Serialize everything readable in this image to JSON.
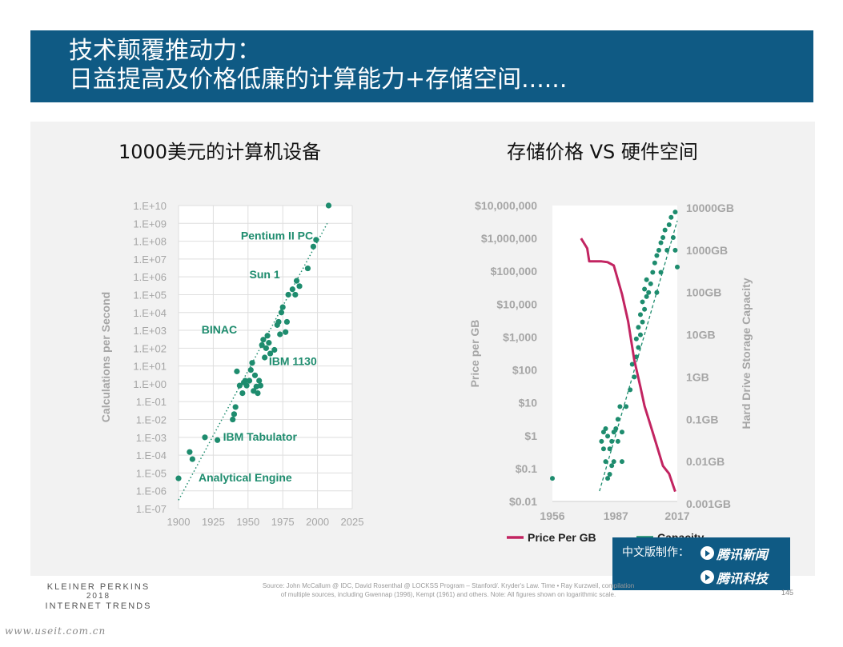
{
  "banner": {
    "title_line1": "技术颠覆推动力：",
    "title_line2": "日益提高及价格低廉的计算能力+存储空间......"
  },
  "colors": {
    "banner_bg": "#0f5a84",
    "green": "#1e8c6e",
    "crimson": "#c22461",
    "axis_grey": "#a6a6a6"
  },
  "chart_data": [
    {
      "type": "scatter",
      "title": "1000美元的计算机设备",
      "ylabel": "Calculations per Second",
      "xlabel": "",
      "y_scale": "log",
      "xlim": [
        1900,
        2025
      ],
      "ylim": [
        1e-07,
        10000000000.0
      ],
      "x_ticks": [
        "1900",
        "1925",
        "1950",
        "1975",
        "2000",
        "2025"
      ],
      "y_ticks": [
        "1.E-07",
        "1.E-06",
        "1.E-05",
        "1.E-04",
        "1.E-03",
        "1.E-02",
        "1.E-01",
        "1.E+00",
        "1.E+01",
        "1.E+02",
        "1.E+03",
        "1.E+04",
        "1.E+05",
        "1.E+06",
        "1.E+07",
        "1.E+08",
        "1.E+09",
        "1.E+10"
      ],
      "grid": true,
      "annotations": [
        {
          "text": "Pentium II PC",
          "x": 1998,
          "y": 100000000.0
        },
        {
          "text": "Sun 1",
          "x": 1981,
          "y": 1000000.0
        },
        {
          "text": "BINAC",
          "x": 1949,
          "y": 1000.0
        },
        {
          "text": "IBM 1130",
          "x": 1965,
          "y": 10
        },
        {
          "text": "IBM Tabulator",
          "x": 1928,
          "y": 0.001
        },
        {
          "text": "Analytical Engine",
          "x": 1900,
          "y": 5e-06
        }
      ],
      "trendline": {
        "style": "dotted",
        "from": [
          1900,
          3e-07
        ],
        "to": [
          2007,
          1000000000.0
        ]
      },
      "points": [
        {
          "x": 1900,
          "y": 5e-06
        },
        {
          "x": 1908,
          "y": 0.00015
        },
        {
          "x": 1910,
          "y": 6e-05
        },
        {
          "x": 1919,
          "y": 0.001
        },
        {
          "x": 1928,
          "y": 0.0007
        },
        {
          "x": 1939,
          "y": 0.01
        },
        {
          "x": 1940,
          "y": 0.02
        },
        {
          "x": 1941,
          "y": 0.05
        },
        {
          "x": 1942,
          "y": 5
        },
        {
          "x": 1944,
          "y": 0.8
        },
        {
          "x": 1946,
          "y": 0.3
        },
        {
          "x": 1947,
          "y": 1.2
        },
        {
          "x": 1948,
          "y": 1.5
        },
        {
          "x": 1949,
          "y": 0.8
        },
        {
          "x": 1951,
          "y": 1.5
        },
        {
          "x": 1952,
          "y": 6
        },
        {
          "x": 1953,
          "y": 15
        },
        {
          "x": 1954,
          "y": 0.4
        },
        {
          "x": 1955,
          "y": 3
        },
        {
          "x": 1956,
          "y": 0.7
        },
        {
          "x": 1957,
          "y": 0.3
        },
        {
          "x": 1958,
          "y": 1.5
        },
        {
          "x": 1959,
          "y": 0.8
        },
        {
          "x": 1960,
          "y": 150
        },
        {
          "x": 1961,
          "y": 300
        },
        {
          "x": 1962,
          "y": 30
        },
        {
          "x": 1963,
          "y": 100
        },
        {
          "x": 1964,
          "y": 500
        },
        {
          "x": 1965,
          "y": 200
        },
        {
          "x": 1966,
          "y": 50
        },
        {
          "x": 1969,
          "y": 80
        },
        {
          "x": 1971,
          "y": 2000
        },
        {
          "x": 1972,
          "y": 3000
        },
        {
          "x": 1973,
          "y": 600
        },
        {
          "x": 1974,
          "y": 10000
        },
        {
          "x": 1975,
          "y": 20000
        },
        {
          "x": 1977,
          "y": 800
        },
        {
          "x": 1978,
          "y": 3000
        },
        {
          "x": 1979,
          "y": 100000
        },
        {
          "x": 1982,
          "y": 200000
        },
        {
          "x": 1984,
          "y": 100000
        },
        {
          "x": 1985,
          "y": 600000
        },
        {
          "x": 1987,
          "y": 300000
        },
        {
          "x": 1993,
          "y": 3000000
        },
        {
          "x": 1997,
          "y": 50000000
        },
        {
          "x": 1999,
          "y": 120000000
        },
        {
          "x": 2008,
          "y": 10000000000.0
        }
      ]
    },
    {
      "type": "line",
      "title": "存储价格 VS 硬件空间",
      "ylabel": "Price per GB",
      "ylabel_right": "Hard Drive Storage Capacity",
      "y_scale": "log",
      "xlim": [
        1956,
        2017
      ],
      "ylim": [
        0.01,
        10000000
      ],
      "x_ticks": [
        "1956",
        "1987",
        "2017"
      ],
      "y_ticks": [
        "$0.01",
        "$0.1",
        "$1",
        "$10",
        "$100",
        "$1,000",
        "$10,000",
        "$100,000",
        "$1,000,000",
        "$10,000,000"
      ],
      "y2_ticks": [
        "0.001GB",
        "0.01GB",
        "0.1GB",
        "1GB",
        "10GB",
        "100GB",
        "1000GB",
        "10000GB"
      ],
      "y2_lim": [
        0.001,
        10000
      ],
      "legend": {
        "position": "bottom",
        "items": [
          "Price Per GB",
          "Capacity"
        ]
      },
      "series": [
        {
          "name": "Price Per GB",
          "color": "#c22461",
          "axis": "left",
          "points": [
            {
              "x": 1970,
              "y": 1000000
            },
            {
              "x": 1973,
              "y": 500000
            },
            {
              "x": 1974,
              "y": 200000
            },
            {
              "x": 1980,
              "y": 200000
            },
            {
              "x": 1983,
              "y": 190000
            },
            {
              "x": 1986,
              "y": 150000
            },
            {
              "x": 1990,
              "y": 20000
            },
            {
              "x": 1993,
              "y": 3000
            },
            {
              "x": 1996,
              "y": 200
            },
            {
              "x": 1999,
              "y": 30
            },
            {
              "x": 2001,
              "y": 8
            },
            {
              "x": 2004,
              "y": 2
            },
            {
              "x": 2007,
              "y": 0.5
            },
            {
              "x": 2010,
              "y": 0.12
            },
            {
              "x": 2013,
              "y": 0.07
            },
            {
              "x": 2015,
              "y": 0.03
            },
            {
              "x": 2016,
              "y": 0.02
            }
          ]
        },
        {
          "name": "Capacity",
          "color": "#1e8c6e",
          "axis": "right",
          "style": "dotted-points",
          "trendline": {
            "style": "dashed",
            "from": [
              1979,
              0.002
            ],
            "to": [
              2017,
              5000
            ]
          },
          "points": [
            {
              "x": 1956,
              "y": 0.004
            },
            {
              "x": 1980,
              "y": 0.03
            },
            {
              "x": 1981,
              "y": 0.05
            },
            {
              "x": 1981,
              "y": 0.02
            },
            {
              "x": 1982,
              "y": 0.06
            },
            {
              "x": 1982,
              "y": 0.01
            },
            {
              "x": 1983,
              "y": 0.04
            },
            {
              "x": 1983,
              "y": 0.004
            },
            {
              "x": 1984,
              "y": 0.02
            },
            {
              "x": 1984,
              "y": 0.005
            },
            {
              "x": 1985,
              "y": 0.03
            },
            {
              "x": 1985,
              "y": 0.008
            },
            {
              "x": 1986,
              "y": 0.05
            },
            {
              "x": 1986,
              "y": 0.01
            },
            {
              "x": 1987,
              "y": 0.06
            },
            {
              "x": 1988,
              "y": 0.1
            },
            {
              "x": 1988,
              "y": 0.03
            },
            {
              "x": 1989,
              "y": 0.2
            },
            {
              "x": 1990,
              "y": 0.05
            },
            {
              "x": 1990,
              "y": 0.01
            },
            {
              "x": 1992,
              "y": 0.2
            },
            {
              "x": 1994,
              "y": 0.5
            },
            {
              "x": 1995,
              "y": 2
            },
            {
              "x": 1996,
              "y": 1
            },
            {
              "x": 1997,
              "y": 3
            },
            {
              "x": 1997,
              "y": 8
            },
            {
              "x": 1998,
              "y": 5
            },
            {
              "x": 1998,
              "y": 15
            },
            {
              "x": 1999,
              "y": 10
            },
            {
              "x": 1999,
              "y": 30
            },
            {
              "x": 2000,
              "y": 20
            },
            {
              "x": 2000,
              "y": 60
            },
            {
              "x": 2001,
              "y": 40
            },
            {
              "x": 2001,
              "y": 120
            },
            {
              "x": 2002,
              "y": 80
            },
            {
              "x": 2002,
              "y": 200
            },
            {
              "x": 2003,
              "y": 100
            },
            {
              "x": 2004,
              "y": 160
            },
            {
              "x": 2005,
              "y": 300
            },
            {
              "x": 2006,
              "y": 500
            },
            {
              "x": 2007,
              "y": 100
            },
            {
              "x": 2007,
              "y": 750
            },
            {
              "x": 2008,
              "y": 1000
            },
            {
              "x": 2009,
              "y": 1500
            },
            {
              "x": 2009,
              "y": 300
            },
            {
              "x": 2010,
              "y": 2000
            },
            {
              "x": 2011,
              "y": 3000
            },
            {
              "x": 2012,
              "y": 1000
            },
            {
              "x": 2013,
              "y": 4000
            },
            {
              "x": 2014,
              "y": 6000
            },
            {
              "x": 2015,
              "y": 2000
            },
            {
              "x": 2016,
              "y": 8000
            },
            {
              "x": 2016,
              "y": 1000
            },
            {
              "x": 2017,
              "y": 400
            }
          ]
        }
      ]
    }
  ],
  "credit": {
    "label": "中文版制作：",
    "brand_news": "腾讯新闻",
    "brand_tech": "腾讯科技"
  },
  "footer": {
    "org": "KLEINER PERKINS",
    "year": "2018",
    "report": "INTERNET TRENDS",
    "source_line1": "Source: John McCallum @ IDC, David Rosenthal @ LOCKSS Program – Stanford/. Kryder's Law. Time • Ray Kurzweil, compilation",
    "source_line2": "of multiple sources, including Gwennap (1996), Kempt (1961) and others. Note: All figures shown on logarithmic scale.",
    "page_number": "145",
    "site_url": "www.useit.com.cn"
  }
}
